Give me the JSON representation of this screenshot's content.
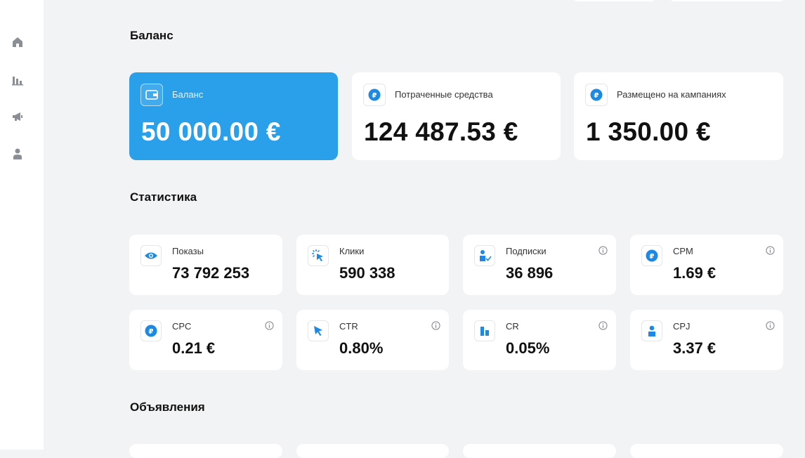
{
  "sidebar": {
    "items": [
      {
        "icon": "home-icon"
      },
      {
        "icon": "bar-chart-icon"
      },
      {
        "icon": "megaphone-icon"
      },
      {
        "icon": "user-icon"
      }
    ]
  },
  "balance_section": {
    "title": "Баланс",
    "cards": [
      {
        "label": "Баланс",
        "value": "50 000.00 €",
        "icon": "wallet-icon"
      },
      {
        "label": "Потраченные средства",
        "value": "124 487.53 €",
        "icon": "ruble-coin-icon"
      },
      {
        "label": "Размещено на кампаниях",
        "value": "1 350.00 €",
        "icon": "ruble-coin-icon"
      }
    ]
  },
  "stats_section": {
    "title": "Статистика",
    "cards": [
      {
        "label": "Показы",
        "value": "73 792 253",
        "icon": "eye-icon",
        "info": false
      },
      {
        "label": "Клики",
        "value": "590 338",
        "icon": "click-icon",
        "info": false
      },
      {
        "label": "Подписки",
        "value": "36 896",
        "icon": "subscription-icon",
        "info": true
      },
      {
        "label": "CPM",
        "value": "1.69 €",
        "icon": "ruble-coin-icon",
        "info": true
      },
      {
        "label": "CPC",
        "value": "0.21 €",
        "icon": "ruble-coin-icon",
        "info": true
      },
      {
        "label": "CTR",
        "value": "0.80%",
        "icon": "cursor-icon",
        "info": true
      },
      {
        "label": "CR",
        "value": "0.05%",
        "icon": "bar-icon",
        "info": true
      },
      {
        "label": "CPJ",
        "value": "3.37 €",
        "icon": "user-icon",
        "info": true
      }
    ]
  },
  "ads_section": {
    "title": "Объявления"
  },
  "colors": {
    "accent": "#2aa0ea",
    "background": "#f2f3f4",
    "icon_blue": "#1e88e5",
    "sidebar_icon": "#8a8f96"
  }
}
